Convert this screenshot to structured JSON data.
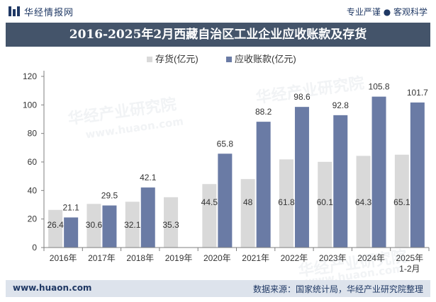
{
  "header": {
    "brand": "华经情报网",
    "slogan": "专业严谨 ● 客观科学"
  },
  "footer": {
    "website": "www.huaon.com",
    "source": "数据来源：国家统计局，华经产业研究院整理"
  },
  "watermarks": [
    "华经产业研究院",
    "www.huaon.com"
  ],
  "colors": {
    "inventory": "#d9d9d9",
    "receivables": "#6a7ba5",
    "title_band": "#44546a",
    "footer_band": "#dde3ec"
  },
  "chart_data": {
    "type": "bar",
    "title": "2016-2025年2月西藏自治区工业企业应收账款及存货",
    "categories": [
      "2016年",
      "2017年",
      "2018年",
      "2019年",
      "2020年",
      "2021年",
      "2022年",
      "2023年",
      "2024年",
      "2025年\n1-2月"
    ],
    "series": [
      {
        "name": "存货(亿元)",
        "values": [
          26.4,
          30.6,
          32.1,
          35.3,
          44.5,
          48,
          61.8,
          60.1,
          64.3,
          65.1
        ],
        "labels": [
          "26.4",
          "30.6",
          "32.1",
          "35.3",
          "44.5",
          "48",
          "61.8",
          "60.1",
          "64.3",
          "65.1"
        ]
      },
      {
        "name": "应收账款(亿元)",
        "values": [
          21.1,
          29.5,
          42.1,
          null,
          65.8,
          88.2,
          98.6,
          92.8,
          105.8,
          101.7
        ],
        "labels": [
          "21.1",
          "29.5",
          "42.1",
          "",
          "65.8",
          "88.2",
          "98.6",
          "92.8",
          "105.8",
          "101.7"
        ]
      }
    ],
    "ylim": [
      0,
      120
    ],
    "yticks": [
      0,
      20,
      40,
      60,
      80,
      100,
      120
    ],
    "legend": "top-center",
    "grid": false
  }
}
